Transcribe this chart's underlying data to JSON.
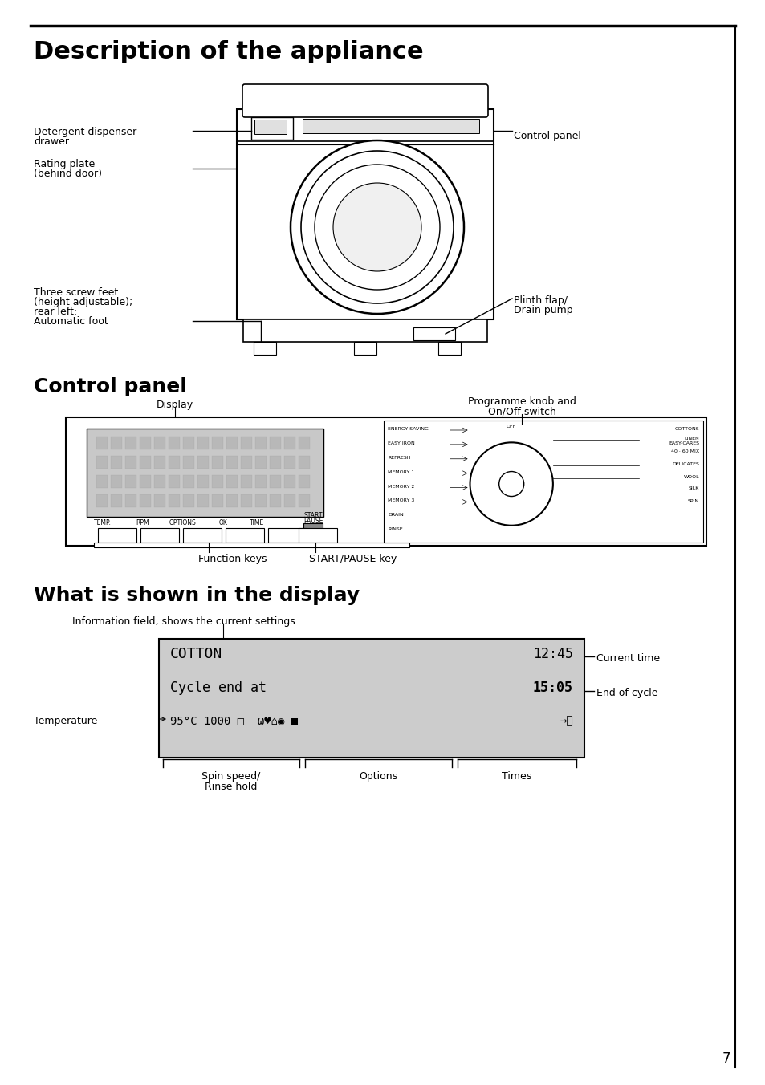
{
  "page_bg": "#ffffff",
  "title1": "Description of the appliance",
  "title2": "Control panel",
  "title3": "What is shown in the display",
  "subtitle3": "Information field, shows the current settings",
  "page_number": "7",
  "display_bg": "#cccccc"
}
